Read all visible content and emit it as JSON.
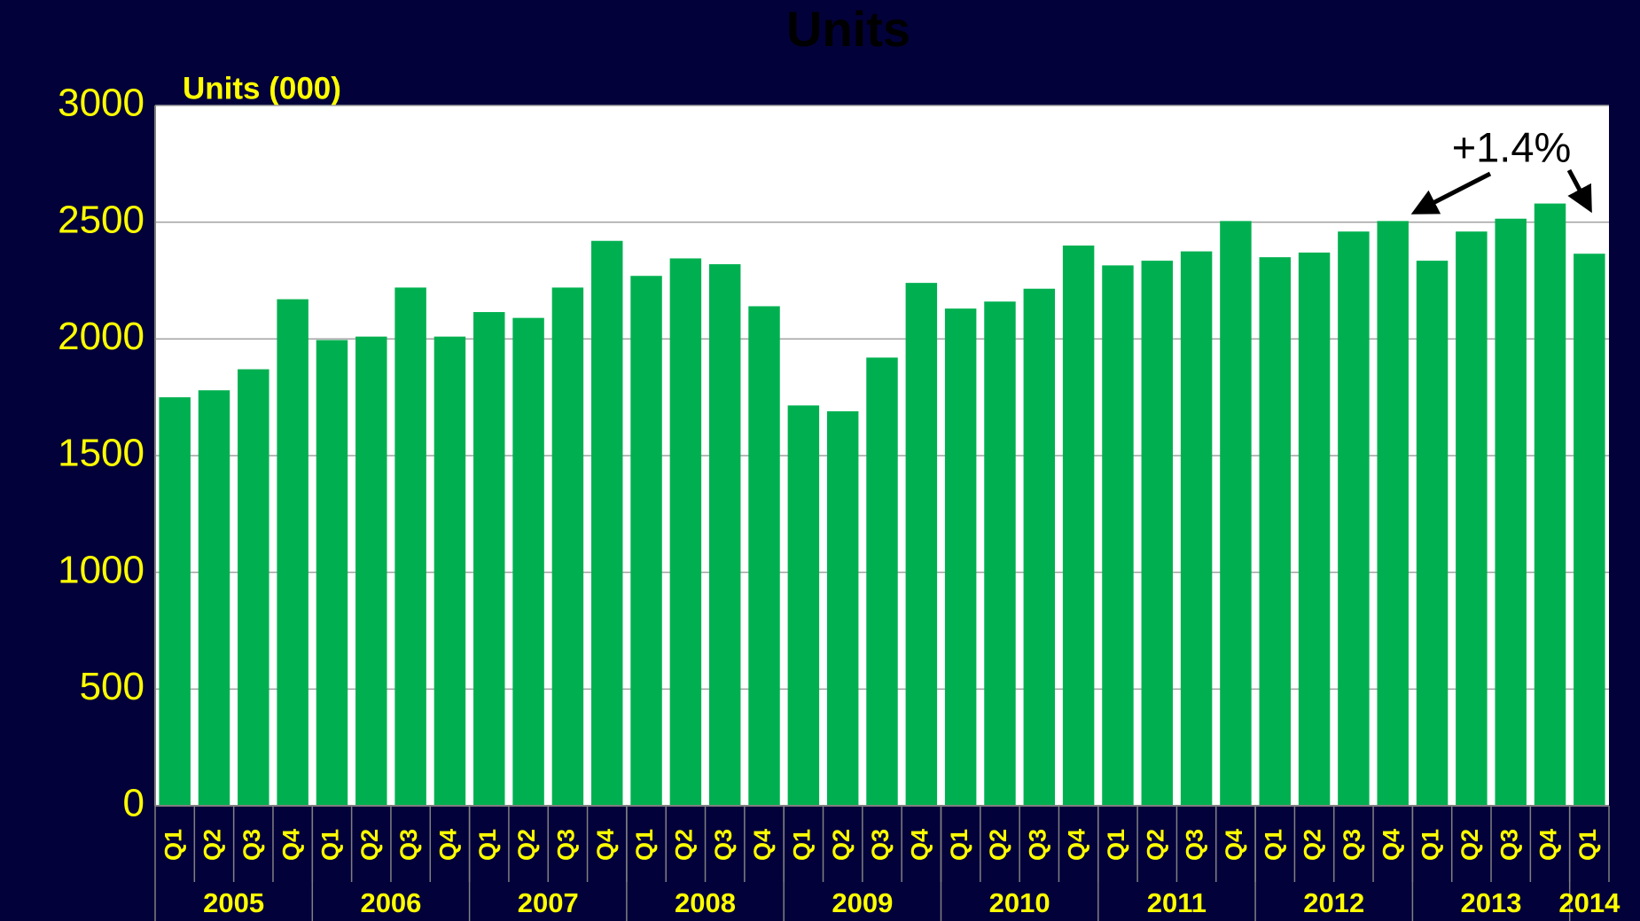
{
  "chart_data": {
    "type": "bar",
    "title": "Units",
    "y_label": "Units (000)",
    "annotation": "+1.4%",
    "categories": [
      "Q1",
      "Q2",
      "Q3",
      "Q4",
      "Q1",
      "Q2",
      "Q3",
      "Q4",
      "Q1",
      "Q2",
      "Q3",
      "Q4",
      "Q1",
      "Q2",
      "Q3",
      "Q4",
      "Q1",
      "Q2",
      "Q3",
      "Q4",
      "Q1",
      "Q2",
      "Q3",
      "Q4",
      "Q1",
      "Q2",
      "Q3",
      "Q4",
      "Q1",
      "Q2",
      "Q3",
      "Q4",
      "Q1",
      "Q2",
      "Q3",
      "Q4",
      "Q1"
    ],
    "years": [
      "2005",
      "2006",
      "2007",
      "2008",
      "2009",
      "2010",
      "2011",
      "2012",
      "2013",
      "2014"
    ],
    "values": [
      1750,
      1780,
      1870,
      2170,
      1995,
      2010,
      2220,
      2010,
      2115,
      2090,
      2220,
      2420,
      2270,
      2345,
      2320,
      2140,
      1715,
      1690,
      1920,
      2240,
      2130,
      2160,
      2215,
      2400,
      2315,
      2335,
      2375,
      2505,
      2350,
      2370,
      2460,
      2505,
      2335,
      2460,
      2515,
      2580,
      2365
    ],
    "color": "#00b050",
    "ylim": [
      0,
      3000
    ],
    "yticks": [
      0,
      500,
      1000,
      1500,
      2000,
      2500,
      3000
    ],
    "grid": true
  }
}
